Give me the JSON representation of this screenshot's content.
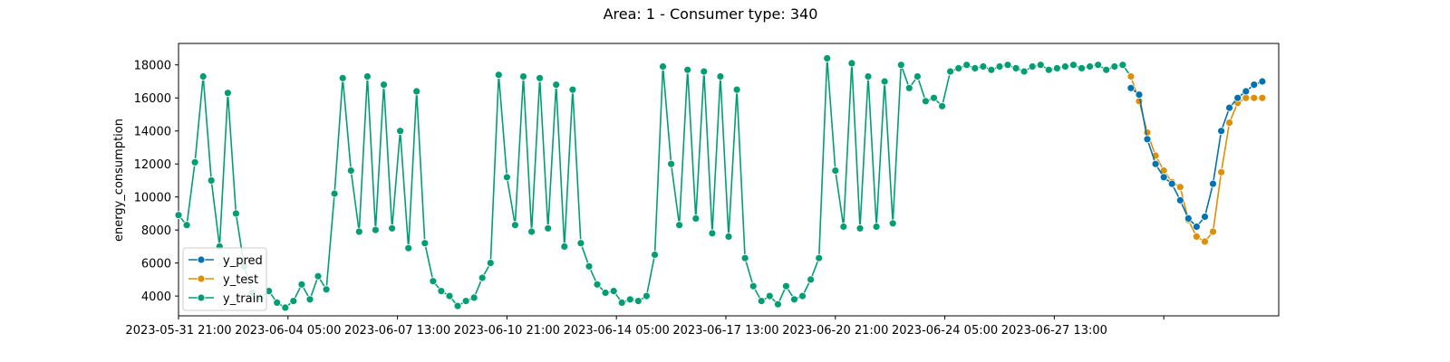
{
  "chart_data": {
    "type": "line",
    "title": "Area: 1 - Consumer type: 340",
    "xlabel": "",
    "ylabel": "energy_consumption",
    "ylim": [
      2800,
      19300
    ],
    "y_ticks": [
      4000,
      6000,
      8000,
      10000,
      12000,
      14000,
      16000,
      18000
    ],
    "x_ticks": [
      "2023-05-31 21:00",
      "2023-06-04 05:00",
      "2023-06-07 13:00",
      "2023-06-10 21:00",
      "2023-06-14 05:00",
      "2023-06-17 13:00",
      "2023-06-20 21:00",
      "2023-06-24 05:00",
      "2023-06-27 13:00",
      ""
    ],
    "x_unit": "hours since 2023-05-31 21:00 (one point every 6 hours)",
    "grid": false,
    "legend_position": "lower-left",
    "series": [
      {
        "name": "y_pred",
        "color": "#0173b2",
        "x": [
          696,
          702,
          708,
          714,
          720,
          726,
          732,
          738,
          744,
          750,
          756,
          762,
          768,
          774,
          780,
          786,
          792
        ],
        "y": [
          16600,
          16200,
          13500,
          12000,
          11200,
          10800,
          9800,
          8700,
          8200,
          8800,
          10800,
          14000,
          15400,
          16000,
          16400,
          16800,
          17000
        ]
      },
      {
        "name": "y_test",
        "color": "#de8f05",
        "x": [
          696,
          702,
          708,
          714,
          720,
          726,
          732,
          738,
          744,
          750,
          756,
          762,
          768,
          774,
          780,
          786,
          792
        ],
        "y": [
          17300,
          15800,
          13900,
          12500,
          11600,
          10900,
          10600,
          8600,
          7600,
          7300,
          7900,
          11500,
          14500,
          15700,
          16000,
          16000,
          16000
        ]
      },
      {
        "name": "y_train",
        "color": "#029e73",
        "x": [
          0,
          6,
          12,
          18,
          24,
          30,
          36,
          42,
          48,
          54,
          60,
          66,
          72,
          78,
          84,
          90,
          96,
          102,
          108,
          114,
          120,
          126,
          132,
          138,
          144,
          150,
          156,
          162,
          168,
          174,
          180,
          186,
          192,
          198,
          204,
          210,
          216,
          222,
          228,
          234,
          240,
          246,
          252,
          258,
          264,
          270,
          276,
          282,
          288,
          294,
          300,
          306,
          312,
          318,
          324,
          330,
          336,
          342,
          348,
          354,
          360,
          366,
          372,
          378,
          384,
          390,
          396,
          402,
          408,
          414,
          420,
          426,
          432,
          438,
          444,
          450,
          456,
          462,
          468,
          474,
          480,
          486,
          492,
          498,
          504,
          510,
          516,
          522,
          528,
          534,
          540,
          546,
          552,
          558,
          564,
          570,
          576,
          582,
          588,
          594,
          600,
          606,
          612,
          618,
          624,
          630,
          636,
          642,
          648,
          654,
          660,
          666,
          672,
          678,
          684,
          690,
          696
        ],
        "y": [
          8900,
          8300,
          12100,
          17300,
          11000,
          7000,
          16300,
          9000,
          5800,
          4200,
          3900,
          4300,
          3600,
          3300,
          3700,
          4700,
          3800,
          5200,
          4400,
          10200,
          17200,
          11600,
          7900,
          17300,
          8000,
          16800,
          8100,
          14000,
          6900,
          16400,
          7200,
          4900,
          4300,
          4000,
          3400,
          3700,
          3900,
          5100,
          6000,
          17400,
          11200,
          8300,
          17300,
          7900,
          17200,
          8100,
          16800,
          7000,
          16500,
          7200,
          5800,
          4700,
          4200,
          4300,
          3600,
          3800,
          3700,
          4000,
          6500,
          17900,
          12000,
          8300,
          17700,
          8700,
          17600,
          7800,
          17300,
          7600,
          16500,
          6300,
          4600,
          3700,
          4000,
          3500,
          4600,
          3800,
          4000,
          5000,
          6300,
          18400,
          11600,
          8200,
          18100,
          8100,
          17300,
          8200,
          17000,
          8400,
          18000,
          16600,
          17300,
          15800,
          16000,
          15500,
          17600,
          17800,
          18000,
          17800,
          17900,
          17700,
          17900,
          18000,
          17800,
          17600,
          17900,
          18000,
          17700,
          17800,
          17900,
          18000,
          17800,
          17900,
          18000,
          17700,
          17900,
          18000,
          17300
        ]
      }
    ]
  }
}
